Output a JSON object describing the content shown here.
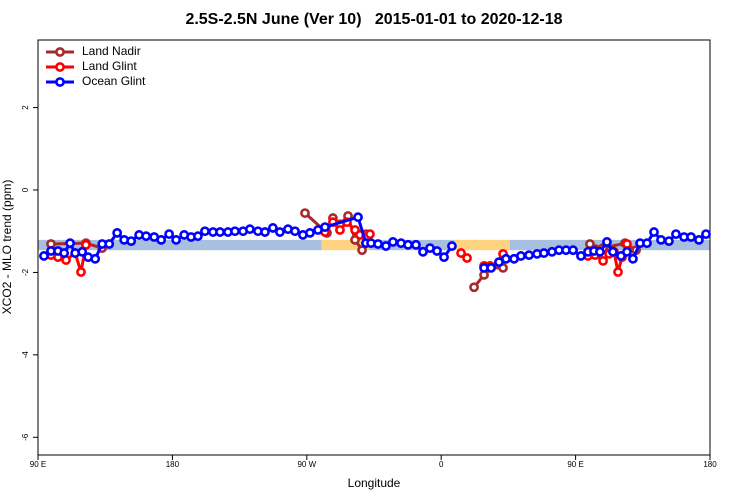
{
  "chart_data": {
    "type": "line",
    "title": "2.5S-2.5N June (Ver 10)   2015-01-01 to 2020-12-18",
    "x_label": "Longitude",
    "y_label": "XCO2 - MLO trend (ppm)",
    "xlim": [
      90,
      540
    ],
    "ylim": [
      -6.43,
      3.64
    ],
    "xticks": [
      {
        "value": 90,
        "label": "90 E"
      },
      180,
      {
        "value": 270,
        "label": "90 W"
      },
      {
        "value": 360,
        "label": "0"
      },
      {
        "value": 450,
        "label": "90 E"
      },
      {
        "value": 540,
        "label": "180"
      }
    ],
    "yticks": [
      -6,
      -4,
      -2,
      0,
      2
    ],
    "legend": "top-left",
    "bands": {
      "ylim": [
        -1.46,
        -1.21
      ],
      "segments": [
        {
          "xlim": [
            90,
            280
          ],
          "color": "#a9bfe0"
        },
        {
          "xlim": [
            280,
            312
          ],
          "color": "#ffd37f"
        },
        {
          "xlim": [
            312,
            369
          ],
          "color": "#a9bfe0"
        },
        {
          "xlim": [
            369,
            406
          ],
          "color": "#ffd37f"
        },
        {
          "xlim": [
            406,
            540
          ],
          "color": "#a9bfe0"
        }
      ]
    },
    "series": [
      {
        "name": "Land Nadir",
        "color": "#a52a2a",
        "x": [
          98.7,
          122.1,
          132.9,
          null,
          268.8,
          283.5,
          287.5,
          292.2,
          297.6,
          302.3,
          307,
          309.6,
          null,
          382,
          388.7,
          392,
          401.4,
          null,
          459.6,
          468.4,
          483.1,
          490.5
        ],
        "values": [
          -1.31,
          -1.29,
          -1.41,
          null,
          -0.56,
          -1.04,
          -0.68,
          -0.83,
          -0.63,
          -1.21,
          -1.46,
          -1.07,
          null,
          -2.36,
          -2.06,
          -1.89,
          -1.89,
          null,
          -1.31,
          -1.41,
          -1.29,
          -1.46
        ]
      },
      {
        "name": "Land Glint",
        "color": "#ff0000",
        "x": [
          98.7,
          103.4,
          108.8,
          114.9,
          118.8,
          122.1,
          null,
          282.2,
          287.5,
          292.2,
          296.9,
          302.3,
          305.6,
          309.6,
          312.3,
          null,
          373.3,
          377.3,
          null,
          388.7,
          392.7,
          398.7,
          401.4,
          null,
          458.3,
          463,
          468.4,
          472.4,
          475.7,
          478.4,
          481.1,
          484.4
        ],
        "values": [
          -1.58,
          -1.63,
          -1.7,
          -1.53,
          -1.99,
          -1.33,
          null,
          -1.02,
          -0.78,
          -0.97,
          -0.78,
          -0.97,
          -1.09,
          -1.14,
          -1.07,
          null,
          -1.53,
          -1.65,
          null,
          -1.84,
          -1.84,
          -1.75,
          -1.55,
          null,
          -1.6,
          -1.58,
          -1.72,
          -1.55,
          -1.5,
          -1.99,
          -1.63,
          -1.31
        ]
      },
      {
        "name": "Ocean Glint",
        "color": "#0000ff",
        "x": [
          94,
          98.7,
          103.4,
          107.5,
          111.5,
          114.9,
          119.6,
          123.6,
          128.3,
          133,
          137.7,
          143,
          147.7,
          152.4,
          157.7,
          162.4,
          167.8,
          172.5,
          177.8,
          182.5,
          187.9,
          192.5,
          197.1,
          201.8,
          207.2,
          211.9,
          217.2,
          221.9,
          227.3,
          231.9,
          237.3,
          242,
          247.3,
          252,
          257.4,
          262.1,
          267.4,
          272.1,
          277.5,
          282.2,
          304.3,
          309.6,
          313,
          317.7,
          323,
          327.7,
          333.1,
          337.8,
          343.1,
          347.8,
          352.5,
          357.2,
          361.9,
          367.2,
          null,
          388.7,
          393.4,
          398.7,
          403.4,
          408.8,
          413.4,
          418.8,
          424.2,
          428.8,
          434.2,
          438.9,
          443.6,
          448.3,
          453.6,
          458.3,
          462.3,
          466.3,
          471,
          475,
          480.4,
          484.4,
          488.4,
          493.2,
          497.8,
          502.5,
          507.2,
          512.5,
          517.2,
          522.6,
          527.3,
          532.6,
          537.3
        ],
        "values": [
          -1.6,
          -1.48,
          -1.48,
          -1.53,
          -1.29,
          -1.53,
          -1.5,
          -1.63,
          -1.67,
          -1.31,
          -1.31,
          -1.04,
          -1.21,
          -1.24,
          -1.09,
          -1.12,
          -1.14,
          -1.21,
          -1.07,
          -1.21,
          -1.09,
          -1.14,
          -1.12,
          -1.0,
          -1.02,
          -1.02,
          -1.02,
          -1.0,
          -1.0,
          -0.95,
          -1.0,
          -1.02,
          -0.92,
          -1.02,
          -0.95,
          -1.0,
          -1.09,
          -1.04,
          -0.97,
          -0.9,
          -0.66,
          -1.29,
          -1.29,
          -1.31,
          -1.36,
          -1.26,
          -1.29,
          -1.33,
          -1.33,
          -1.5,
          -1.41,
          -1.48,
          -1.63,
          -1.36,
          null,
          -1.89,
          -1.89,
          -1.75,
          -1.67,
          -1.67,
          -1.6,
          -1.58,
          -1.55,
          -1.53,
          -1.5,
          -1.46,
          -1.46,
          -1.46,
          -1.6,
          -1.5,
          -1.48,
          -1.5,
          -1.26,
          -1.5,
          -1.6,
          -1.5,
          -1.67,
          -1.29,
          -1.29,
          -1.02,
          -1.21,
          -1.24,
          -1.07,
          -1.14,
          -1.14,
          -1.21,
          -1.07
        ]
      }
    ]
  }
}
